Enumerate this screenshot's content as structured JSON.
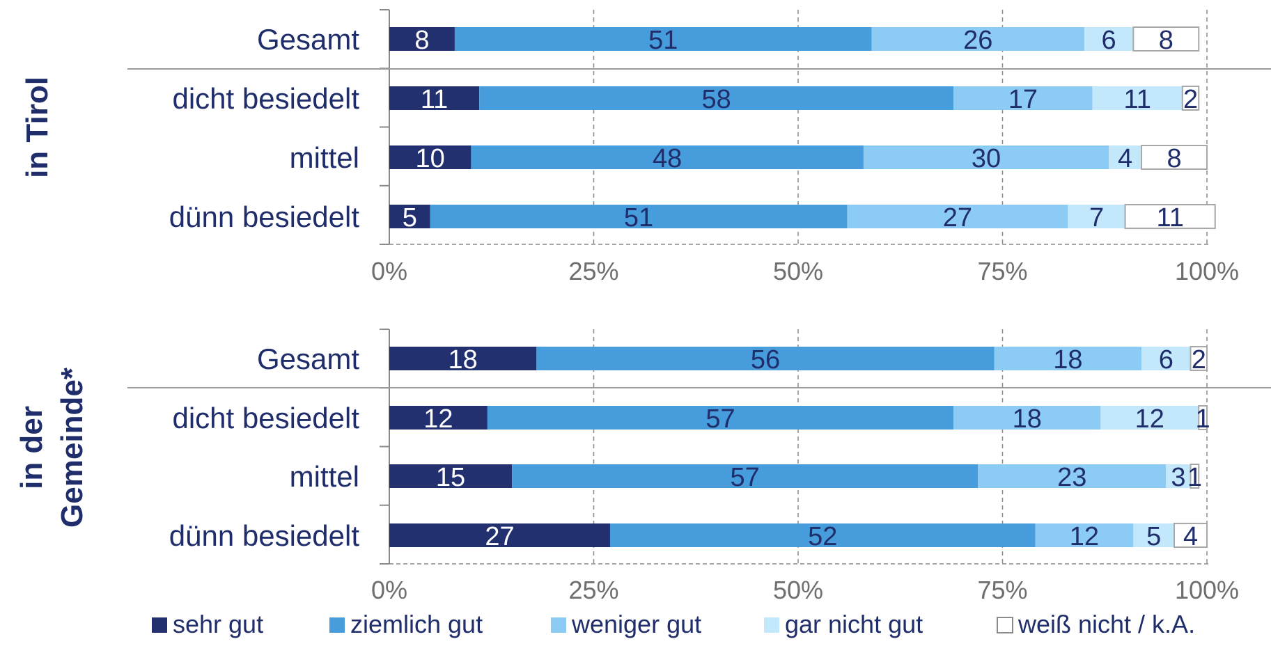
{
  "chart_data": {
    "type": "bar",
    "orientation": "horizontal",
    "stacked": true,
    "xlim": [
      0,
      100
    ],
    "x_ticks": [
      "0%",
      "25%",
      "50%",
      "75%",
      "100%"
    ],
    "grid": "vertical dashed",
    "legend_position": "bottom",
    "legend": [
      {
        "name": "sehr gut",
        "color": "#223070"
      },
      {
        "name": "ziemlich gut",
        "color": "#479ddc"
      },
      {
        "name": "weniger gut",
        "color": "#8ccbf4"
      },
      {
        "name": "gar nicht gut",
        "color": "#c4e8fb"
      },
      {
        "name": "weiß nicht / k.A.",
        "color": "#ffffff"
      }
    ],
    "panels": [
      {
        "group_label": "in Tirol",
        "categories": [
          "Gesamt",
          "dicht besiedelt",
          "mittel",
          "dünn besiedelt"
        ],
        "series": [
          {
            "name": "sehr gut",
            "values": [
              8,
              11,
              10,
              5
            ]
          },
          {
            "name": "ziemlich gut",
            "values": [
              51,
              58,
              48,
              51
            ]
          },
          {
            "name": "weniger gut",
            "values": [
              26,
              17,
              30,
              27
            ]
          },
          {
            "name": "gar nicht gut",
            "values": [
              6,
              11,
              4,
              7
            ]
          },
          {
            "name": "weiß nicht / k.A.",
            "values": [
              8,
              2,
              8,
              11
            ]
          }
        ]
      },
      {
        "group_label": [
          "in der",
          "Gemeinde*"
        ],
        "categories": [
          "Gesamt",
          "dicht besiedelt",
          "mittel",
          "dünn besiedelt"
        ],
        "series": [
          {
            "name": "sehr gut",
            "values": [
              18,
              12,
              15,
              27
            ]
          },
          {
            "name": "ziemlich gut",
            "values": [
              56,
              57,
              57,
              52
            ]
          },
          {
            "name": "weniger gut",
            "values": [
              18,
              18,
              23,
              12
            ]
          },
          {
            "name": "gar nicht gut",
            "values": [
              6,
              12,
              3,
              5
            ]
          },
          {
            "name": "weiß nicht / k.A.",
            "values": [
              2,
              1,
              1,
              4
            ]
          }
        ]
      }
    ]
  }
}
